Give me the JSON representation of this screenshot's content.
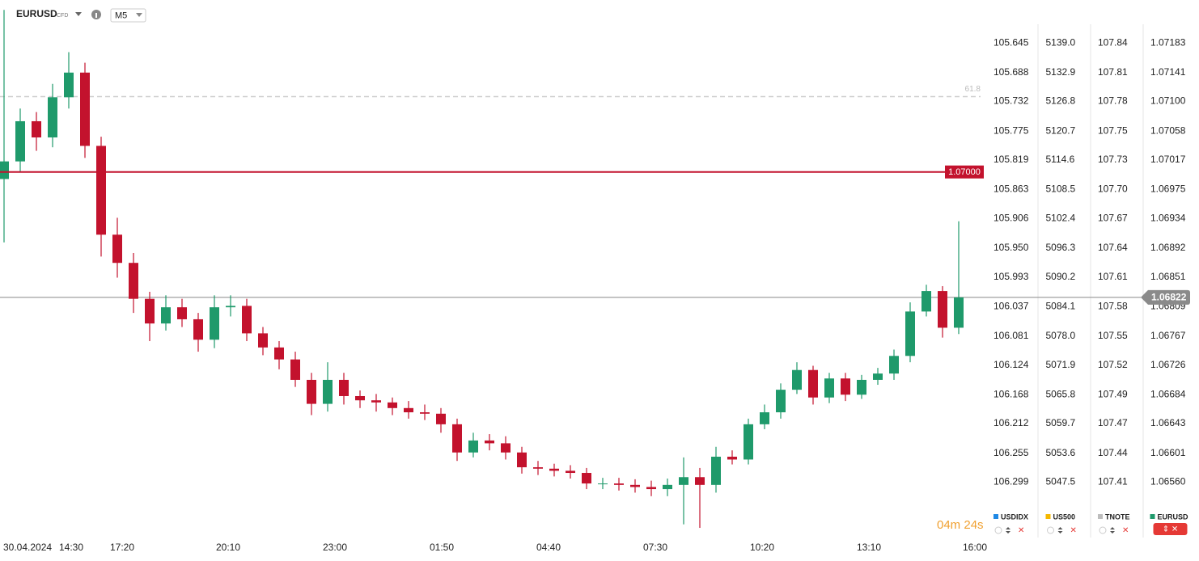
{
  "toolbar": {
    "symbol": "EURUSD",
    "badge": "CFD",
    "timeframe": "M5"
  },
  "timer": "04m 24s",
  "chart_data": {
    "type": "candlestick",
    "up_color": "#1f9a6b",
    "down_color": "#c3122d",
    "ylim": [
      1.06487,
      1.07244
    ],
    "yticks": [
      1.07183,
      1.07141,
      {
        "value": 1.071,
        "label": "1.07100"
      },
      1.07058,
      1.07017,
      1.06975,
      1.06934,
      1.06892,
      1.06851,
      1.06809,
      1.06767,
      1.06726,
      1.06684,
      1.06643,
      1.06601,
      {
        "value": 1.0656,
        "label": "1.06560"
      }
    ],
    "level": {
      "value": 1.07,
      "label": "1.07000",
      "color": "#c3122d"
    },
    "fib": {
      "value": 1.07107,
      "label": "61.8"
    },
    "last_price": 1.06822,
    "xlabels": [
      "30.04.2024",
      "14:30",
      "17:20",
      "20:10",
      "23:00",
      "01:50",
      "04:40",
      "07:30",
      "10:20",
      "13:10",
      "16:00"
    ],
    "open": [
      1.0699,
      1.07015,
      1.07072,
      1.07049,
      1.07106,
      1.07141,
      1.07037,
      1.06911,
      1.06871,
      1.0682,
      1.06785,
      1.06808,
      1.06791,
      1.06762,
      1.06808,
      1.0681,
      1.06771,
      1.06751,
      1.06734,
      1.06705,
      1.06671,
      1.06705,
      1.06682,
      1.06676,
      1.06673,
      1.06665,
      1.06659,
      1.06657,
      1.06642,
      1.06602,
      1.06619,
      1.06615,
      1.06602,
      1.06581,
      1.06579,
      1.06576,
      1.06573,
      1.06558,
      1.06558,
      1.06556,
      1.06553,
      1.0655,
      1.06556,
      1.06567,
      1.06556,
      1.06596,
      1.06592,
      1.06642,
      1.06659,
      1.06691,
      1.06719,
      1.0668,
      1.06707,
      1.06684,
      1.06705,
      1.06714,
      1.06739,
      1.06802,
      1.06831,
      1.06779
    ],
    "high": [
      1.0723,
      1.0709,
      1.07085,
      1.07125,
      1.0717,
      1.07155,
      1.0705,
      1.06935,
      1.06885,
      1.0683,
      1.06825,
      1.0682,
      1.068,
      1.06825,
      1.06825,
      1.0682,
      1.0678,
      1.0676,
      1.06745,
      1.06715,
      1.0673,
      1.06715,
      1.0669,
      1.06685,
      1.0668,
      1.06675,
      1.0667,
      1.06665,
      1.0665,
      1.0663,
      1.06628,
      1.06625,
      1.0661,
      1.0659,
      1.06586,
      1.06584,
      1.0658,
      1.06566,
      1.06566,
      1.06564,
      1.06562,
      1.06565,
      1.06595,
      1.0658,
      1.0661,
      1.06605,
      1.0665,
      1.0667,
      1.067,
      1.0673,
      1.06725,
      1.06715,
      1.06715,
      1.06712,
      1.06722,
      1.06748,
      1.06815,
      1.0684,
      1.06838,
      1.0693
    ],
    "low": [
      1.069,
      1.07,
      1.0703,
      1.07035,
      1.0709,
      1.0702,
      1.0688,
      1.0685,
      1.068,
      1.0676,
      1.06775,
      1.0678,
      1.06745,
      1.0675,
      1.06795,
      1.0676,
      1.0674,
      1.0672,
      1.06695,
      1.06655,
      1.0666,
      1.0667,
      1.06665,
      1.0666,
      1.06655,
      1.0665,
      1.06648,
      1.0663,
      1.0659,
      1.06595,
      1.06605,
      1.06592,
      1.06572,
      1.0657,
      1.06568,
      1.06565,
      1.0655,
      1.0655,
      1.06548,
      1.06545,
      1.0654,
      1.0654,
      1.065,
      1.06495,
      1.06545,
      1.06585,
      1.06585,
      1.06635,
      1.0665,
      1.06685,
      1.0667,
      1.06672,
      1.06675,
      1.06678,
      1.06698,
      1.06705,
      1.0673,
      1.06795,
      1.06765,
      1.0677
    ],
    "close": [
      1.07015,
      1.07072,
      1.07049,
      1.07106,
      1.07141,
      1.07037,
      1.06911,
      1.06871,
      1.0682,
      1.06785,
      1.06808,
      1.06791,
      1.06762,
      1.06808,
      1.0681,
      1.06771,
      1.06751,
      1.06734,
      1.06705,
      1.06671,
      1.06705,
      1.06682,
      1.06676,
      1.06673,
      1.06665,
      1.06659,
      1.06657,
      1.06642,
      1.06602,
      1.06619,
      1.06615,
      1.06602,
      1.06581,
      1.06579,
      1.06576,
      1.06573,
      1.06558,
      1.06558,
      1.06556,
      1.06553,
      1.0655,
      1.06556,
      1.06567,
      1.06556,
      1.06596,
      1.06592,
      1.06642,
      1.06659,
      1.06691,
      1.06719,
      1.0668,
      1.06707,
      1.06684,
      1.06705,
      1.06714,
      1.06739,
      1.06802,
      1.06831,
      1.06779,
      1.06822
    ],
    "scales": [
      {
        "name": "USDIDX",
        "color": "#1e88e5",
        "labels": [
          "105.645",
          "105.688",
          "105.732",
          "105.775",
          "105.819",
          "105.863",
          "105.906",
          "105.950",
          "105.993",
          "106.037",
          "106.081",
          "106.124",
          "106.168",
          "106.212",
          "106.255",
          "106.299"
        ]
      },
      {
        "name": "US500",
        "color": "#f5b800",
        "labels": [
          "5139.0",
          "5132.9",
          "5126.8",
          "5120.7",
          "5114.6",
          "5108.5",
          "5102.4",
          "5096.3",
          "5090.2",
          "5084.1",
          "5078.0",
          "5071.9",
          "5065.8",
          "5059.7",
          "5053.6",
          "5047.5"
        ]
      },
      {
        "name": "TNOTE",
        "color": "#bdbdbd",
        "labels": [
          "107.84",
          "107.81",
          "107.78",
          "107.75",
          "107.73",
          "107.70",
          "107.67",
          "107.64",
          "107.61",
          "107.58",
          "107.55",
          "107.52",
          "107.49",
          "107.47",
          "107.44",
          "107.41"
        ]
      },
      {
        "name": "EURUSD",
        "color": "#1f9a6b"
      }
    ]
  }
}
